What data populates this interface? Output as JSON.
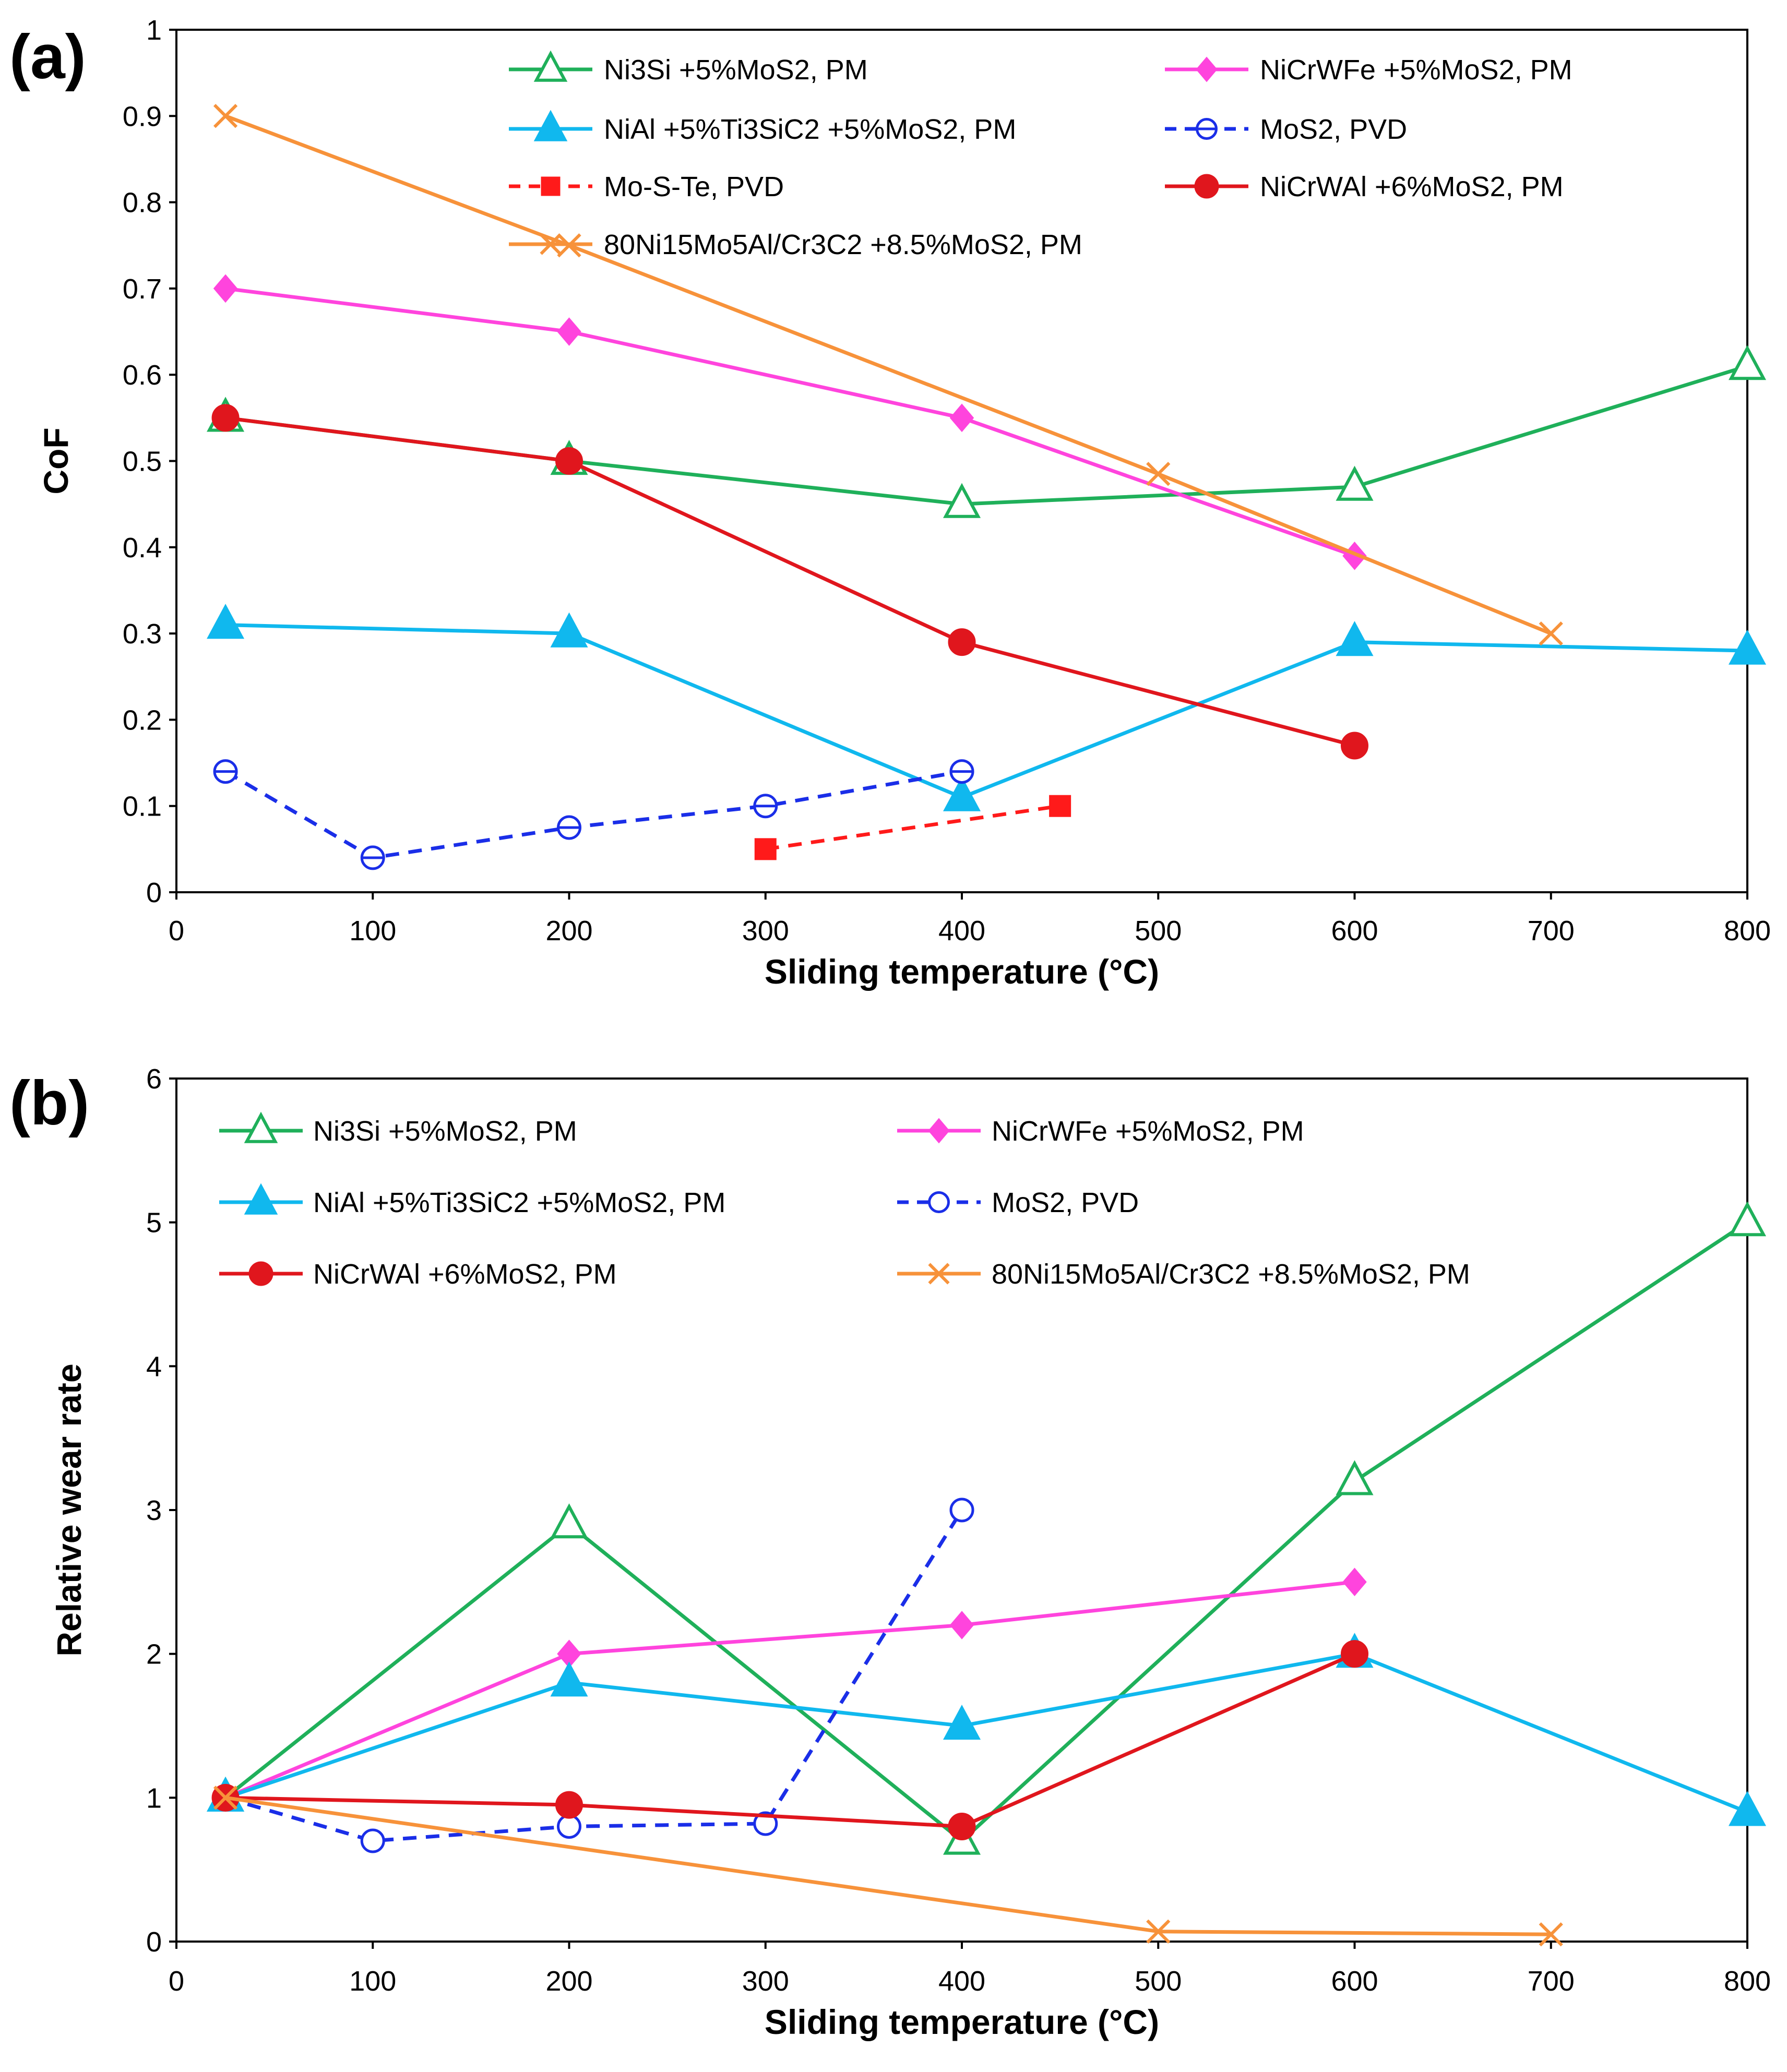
{
  "chart_data": [
    {
      "panel": "(a)",
      "type": "line",
      "xlabel": "Sliding temperature (°C)",
      "ylabel": "CoF",
      "xlim": [
        0,
        800
      ],
      "ylim": [
        0,
        1
      ],
      "xticks": [
        0,
        100,
        200,
        300,
        400,
        500,
        600,
        700,
        800
      ],
      "yticks": [
        0,
        0.1,
        0.2,
        0.3,
        0.4,
        0.5,
        0.6,
        0.7,
        0.8,
        0.9,
        1
      ],
      "ytick_labels": [
        "0",
        "0.1",
        "0.2",
        "0.3",
        "0.4",
        "0.5",
        "0.6",
        "0.7",
        "0.8",
        "0.9",
        "1"
      ],
      "grid": false,
      "legend": [
        {
          "label": "Ni3Si +5%MoS2, PM",
          "series": "ni3si"
        },
        {
          "label": "NiCrWFe +5%MoS2, PM",
          "series": "nicrwfe"
        },
        {
          "label": "NiAl +5%Ti3SiC2 +5%MoS2, PM",
          "series": "nial"
        },
        {
          "label": "MoS2, PVD",
          "series": "mos2"
        },
        {
          "label": "Mo-S-Te, PVD",
          "series": "moste"
        },
        {
          "label": "NiCrWAl +6%MoS2, PM",
          "series": "nicrwal"
        },
        {
          "label": "80Ni15Mo5Al/Cr3C2 +8.5%MoS2, PM",
          "series": "ni80"
        }
      ],
      "series": [
        {
          "key": "ni3si",
          "name": "Ni3Si +5%MoS2, PM",
          "color": "#1fb05a",
          "marker": "triangle-open",
          "dash": false,
          "x": [
            25,
            200,
            400,
            600,
            800
          ],
          "y": [
            0.55,
            0.5,
            0.45,
            0.47,
            0.61
          ]
        },
        {
          "key": "nicrwfe",
          "name": "NiCrWFe +5%MoS2, PM",
          "color": "#ff44dd",
          "marker": "diamond-filled",
          "dash": false,
          "x": [
            25,
            200,
            400,
            600
          ],
          "y": [
            0.7,
            0.65,
            0.55,
            0.39
          ]
        },
        {
          "key": "nial",
          "name": "NiAl +5%Ti3SiC2 +5%MoS2, PM",
          "color": "#10b8ee",
          "marker": "triangle-filled",
          "dash": false,
          "x": [
            25,
            200,
            400,
            600,
            800
          ],
          "y": [
            0.31,
            0.3,
            0.11,
            0.29,
            0.28
          ]
        },
        {
          "key": "mos2",
          "name": "MoS2, PVD",
          "color": "#1a2ee8",
          "marker": "circle-open-bar",
          "dash": true,
          "x": [
            25,
            100,
            200,
            300,
            400
          ],
          "y": [
            0.14,
            0.04,
            0.075,
            0.1,
            0.14
          ]
        },
        {
          "key": "moste",
          "name": "Mo-S-Te, PVD",
          "color": "#ff1a1a",
          "marker": "square-filled",
          "dash": true,
          "x": [
            300,
            450
          ],
          "y": [
            0.05,
            0.1
          ]
        },
        {
          "key": "nicrwal",
          "name": "NiCrWAl +6%MoS2, PM",
          "color": "#e0161d",
          "marker": "circle-filled",
          "dash": false,
          "x": [
            25,
            200,
            400,
            600
          ],
          "y": [
            0.55,
            0.5,
            0.29,
            0.17
          ]
        },
        {
          "key": "ni80",
          "name": "80Ni15Mo5Al/Cr3C2 +8.5%MoS2, PM",
          "color": "#f7923a",
          "marker": "x",
          "dash": false,
          "x": [
            25,
            200,
            500,
            700
          ],
          "y": [
            0.9,
            0.75,
            0.485,
            0.3
          ]
        }
      ]
    },
    {
      "panel": "(b)",
      "type": "line",
      "xlabel": "Sliding temperature (°C)",
      "ylabel": "Relative wear rate",
      "xlim": [
        0,
        800
      ],
      "ylim": [
        0,
        6
      ],
      "xticks": [
        0,
        100,
        200,
        300,
        400,
        500,
        600,
        700,
        800
      ],
      "yticks": [
        0,
        1,
        2,
        3,
        4,
        5,
        6
      ],
      "ytick_labels": [
        "0",
        "1",
        "2",
        "3",
        "4",
        "5",
        "6"
      ],
      "grid": false,
      "legend": [
        {
          "label": "Ni3Si +5%MoS2, PM",
          "series": "ni3si"
        },
        {
          "label": "NiCrWFe +5%MoS2, PM",
          "series": "nicrwfe"
        },
        {
          "label": "NiAl +5%Ti3SiC2 +5%MoS2, PM",
          "series": "nial"
        },
        {
          "label": "MoS2, PVD",
          "series": "mos2"
        },
        {
          "label": "NiCrWAl +6%MoS2, PM",
          "series": "nicrwal"
        },
        {
          "label": "80Ni15Mo5Al/Cr3C2 +8.5%MoS2, PM",
          "series": "ni80"
        }
      ],
      "series": [
        {
          "key": "ni3si",
          "name": "Ni3Si +5%MoS2, PM",
          "color": "#1fb05a",
          "marker": "triangle-open",
          "dash": false,
          "x": [
            25,
            200,
            400,
            600,
            800
          ],
          "y": [
            1.0,
            2.9,
            0.7,
            3.2,
            5.0
          ]
        },
        {
          "key": "nicrwfe",
          "name": "NiCrWFe +5%MoS2, PM",
          "color": "#ff44dd",
          "marker": "diamond-filled",
          "dash": false,
          "x": [
            25,
            200,
            400,
            600
          ],
          "y": [
            1.0,
            2.0,
            2.2,
            2.5
          ]
        },
        {
          "key": "nial",
          "name": "NiAl +5%Ti3SiC2 +5%MoS2, PM",
          "color": "#10b8ee",
          "marker": "triangle-filled",
          "dash": false,
          "x": [
            25,
            200,
            400,
            600,
            800
          ],
          "y": [
            1.0,
            1.8,
            1.5,
            2.0,
            0.9
          ]
        },
        {
          "key": "mos2",
          "name": "MoS2, PVD",
          "color": "#1a2ee8",
          "marker": "circle-open",
          "dash": true,
          "x": [
            25,
            100,
            200,
            300,
            400
          ],
          "y": [
            1.0,
            0.7,
            0.8,
            0.82,
            3.0
          ]
        },
        {
          "key": "nicrwal",
          "name": "NiCrWAl +6%MoS2, PM",
          "color": "#e0161d",
          "marker": "circle-filled",
          "dash": false,
          "x": [
            25,
            200,
            400,
            600
          ],
          "y": [
            1.0,
            0.95,
            0.8,
            2.0
          ]
        },
        {
          "key": "ni80",
          "name": "80Ni15Mo5Al/Cr3C2 +8.5%MoS2, PM",
          "color": "#f7923a",
          "marker": "x",
          "dash": false,
          "x": [
            25,
            500,
            700
          ],
          "y": [
            1.0,
            0.07,
            0.05
          ]
        }
      ]
    }
  ]
}
